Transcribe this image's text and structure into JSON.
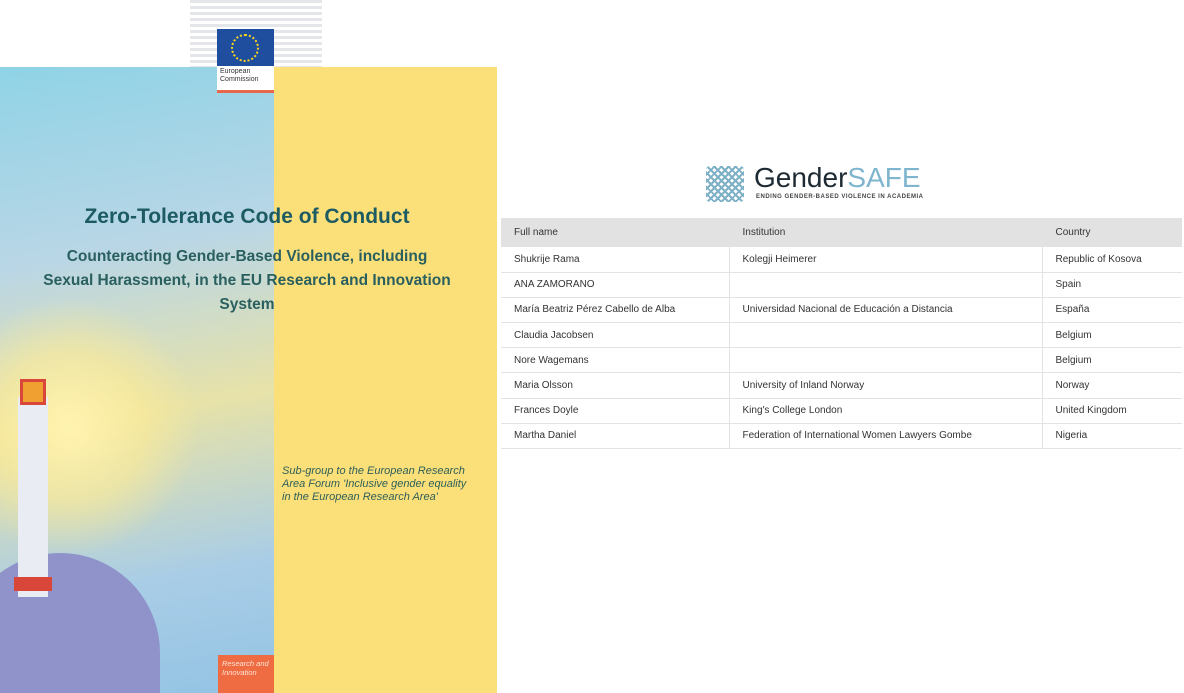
{
  "cover": {
    "publisher_logo_text": "European Commission",
    "title": "Zero-Tolerance Code of Conduct",
    "subtitle": "Counteracting Gender-Based Violence, including Sexual Harassment, in the EU Research and Innovation System",
    "subgroup": "Sub-group to the European Research Area Forum 'Inclusive gender equality in the European Research Area'",
    "series_label": "Research and Innovation"
  },
  "gendersafe": {
    "logo_name_a": "Gender",
    "logo_name_b": "SAFE",
    "tagline": "ENDING GENDER-BASED VIOLENCE IN ACADEMIA"
  },
  "table": {
    "headers": [
      "Full name",
      "Institution",
      "Country"
    ],
    "rows": [
      [
        "Shukrije Rama",
        "Kolegji Heimerer",
        "Republic of Kosova"
      ],
      [
        "ANA ZAMORANO",
        "",
        "Spain"
      ],
      [
        "María Beatriz Pérez Cabello de Alba",
        "Universidad Nacional de Educación a Distancia",
        "España"
      ],
      [
        "Claudia Jacobsen",
        "",
        "Belgium"
      ],
      [
        "Nore Wagemans",
        "",
        "Belgium"
      ],
      [
        "Maria Olsson",
        "University of Inland Norway",
        "Norway"
      ],
      [
        "Frances Doyle",
        "King's College London",
        "United Kingdom"
      ],
      [
        "Martha Daniel",
        "Federation of International Women Lawyers Gombe",
        "Nigeria"
      ]
    ]
  }
}
